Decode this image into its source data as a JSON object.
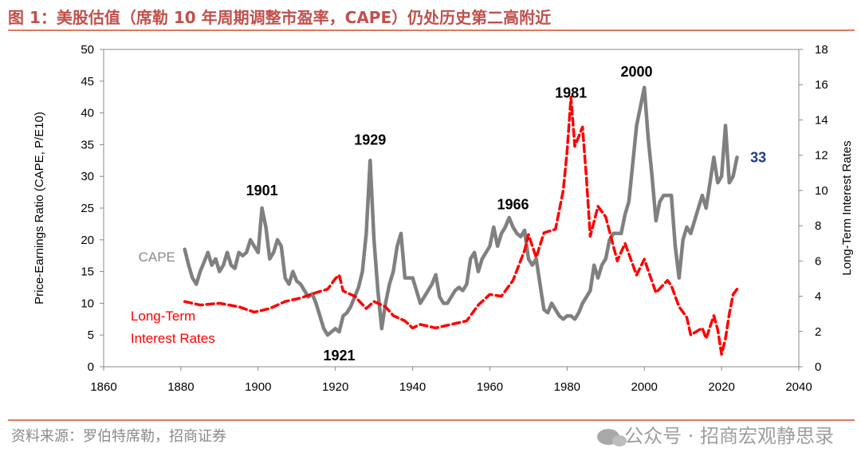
{
  "figure": {
    "title": "图 1：美股估值（席勒 10 年周期调整市盈率，CAPE）仍处历史第二高附近",
    "source": "资料来源：罗伯特席勒，招商证券",
    "watermark": "公众号 · 招商宏观静思录",
    "watermark_icon": "wechat-icon"
  },
  "chart_data": {
    "type": "line",
    "xlabel": "",
    "ylabel": "Price-Earnings Ratio (CAPE, P/E10)",
    "y2label": "Long-Term Interest Rates",
    "xlim": [
      1860,
      2040
    ],
    "ylim": [
      0,
      50
    ],
    "y2lim": [
      0,
      18
    ],
    "x_ticks": [
      1860,
      1880,
      1900,
      1920,
      1940,
      1960,
      1980,
      2000,
      2020,
      2040
    ],
    "y_ticks": [
      0,
      5,
      10,
      15,
      20,
      25,
      30,
      35,
      40,
      45,
      50
    ],
    "y2_ticks": [
      0,
      2,
      4,
      6,
      8,
      10,
      12,
      14,
      16,
      18
    ],
    "grid": false,
    "series": [
      {
        "name": "CAPE",
        "axis": "left",
        "color": "#808080",
        "style": "solid",
        "x": [
          1881,
          1882,
          1883,
          1884,
          1885,
          1886,
          1887,
          1888,
          1889,
          1890,
          1891,
          1892,
          1893,
          1894,
          1895,
          1896,
          1897,
          1898,
          1899,
          1900,
          1901,
          1902,
          1903,
          1904,
          1905,
          1906,
          1907,
          1908,
          1909,
          1910,
          1911,
          1912,
          1913,
          1914,
          1915,
          1916,
          1917,
          1918,
          1919,
          1920,
          1921,
          1922,
          1923,
          1924,
          1925,
          1926,
          1927,
          1928,
          1929,
          1930,
          1931,
          1932,
          1933,
          1934,
          1935,
          1936,
          1937,
          1938,
          1939,
          1940,
          1941,
          1942,
          1943,
          1944,
          1945,
          1946,
          1947,
          1948,
          1949,
          1950,
          1951,
          1952,
          1953,
          1954,
          1955,
          1956,
          1957,
          1958,
          1959,
          1960,
          1961,
          1962,
          1963,
          1964,
          1965,
          1966,
          1967,
          1968,
          1969,
          1970,
          1971,
          1972,
          1973,
          1974,
          1975,
          1976,
          1977,
          1978,
          1979,
          1980,
          1981,
          1982,
          1983,
          1984,
          1985,
          1986,
          1987,
          1988,
          1989,
          1990,
          1991,
          1992,
          1993,
          1994,
          1995,
          1996,
          1997,
          1998,
          1999,
          2000,
          2001,
          2002,
          2003,
          2004,
          2005,
          2006,
          2007,
          2008,
          2009,
          2010,
          2011,
          2012,
          2013,
          2014,
          2015,
          2016,
          2017,
          2018,
          2019,
          2020,
          2021,
          2022,
          2023,
          2024
        ],
        "values": [
          18.5,
          16,
          14,
          13,
          15,
          16.5,
          18,
          16,
          17,
          15,
          16,
          18,
          16,
          15.5,
          18,
          17.5,
          18,
          20,
          19,
          18,
          25,
          22,
          17,
          18,
          20,
          19,
          14,
          13,
          15,
          13.5,
          13,
          12,
          11,
          11.5,
          10,
          8,
          6,
          5,
          5.5,
          6,
          5.5,
          8,
          8.5,
          9.5,
          11,
          12.5,
          15,
          21,
          32.5,
          20,
          12,
          6,
          10,
          13,
          15,
          19,
          21,
          14,
          14,
          14,
          12,
          10,
          11,
          12,
          13,
          14.5,
          11,
          10,
          10,
          11,
          12,
          12.5,
          12,
          13,
          17,
          18,
          15,
          17,
          18,
          19,
          22,
          19,
          21,
          22,
          23.5,
          22,
          21,
          20.5,
          21.5,
          17,
          16,
          17,
          13,
          9,
          8.5,
          10,
          9,
          8,
          7.5,
          8,
          8,
          7.5,
          8.5,
          10,
          11,
          12,
          16,
          14,
          16,
          17,
          20,
          21,
          21,
          21,
          24,
          26,
          32,
          38,
          41,
          44,
          36,
          30,
          23,
          26,
          27,
          27,
          27,
          19,
          14,
          20,
          22,
          21,
          23,
          25,
          27,
          25,
          29,
          33,
          29,
          30,
          38,
          29,
          30,
          33
        ]
      },
      {
        "name": "Long-Term Interest Rates",
        "axis": "right",
        "color": "#ff0000",
        "style": "dashed",
        "x": [
          1881,
          1885,
          1890,
          1895,
          1899,
          1903,
          1907,
          1911,
          1915,
          1918,
          1920,
          1921,
          1922,
          1925,
          1928,
          1930,
          1933,
          1935,
          1938,
          1940,
          1942,
          1946,
          1950,
          1954,
          1957,
          1960,
          1963,
          1966,
          1969,
          1970,
          1972,
          1974,
          1977,
          1979,
          1980,
          1981,
          1982,
          1984,
          1985,
          1986,
          1988,
          1990,
          1993,
          1995,
          1998,
          2000,
          2003,
          2006,
          2007,
          2009,
          2011,
          2012,
          2015,
          2016,
          2018,
          2019,
          2020,
          2021,
          2022,
          2023,
          2024
        ],
        "values": [
          3.7,
          3.5,
          3.6,
          3.4,
          3.1,
          3.3,
          3.7,
          3.9,
          4.2,
          4.4,
          5.0,
          5.2,
          4.3,
          4.0,
          3.3,
          3.7,
          3.4,
          2.9,
          2.6,
          2.2,
          2.4,
          2.2,
          2.4,
          2.6,
          3.5,
          4.1,
          4.0,
          4.9,
          6.6,
          7.5,
          6.2,
          7.6,
          7.8,
          10.0,
          12.2,
          15.3,
          12.5,
          13.6,
          10.7,
          7.4,
          9.1,
          8.5,
          6.0,
          7.0,
          5.2,
          6.1,
          4.2,
          4.9,
          4.6,
          3.4,
          2.8,
          1.8,
          2.2,
          1.6,
          2.9,
          2.1,
          0.7,
          1.6,
          3.0,
          4.1,
          4.4
        ]
      }
    ],
    "annotations": [
      {
        "text": "1901",
        "x": 1901,
        "y": 27.0,
        "axis": "left",
        "color": "#000000"
      },
      {
        "text": "1921",
        "x": 1921,
        "y": 1.0,
        "axis": "left",
        "color": "#000000"
      },
      {
        "text": "1929",
        "x": 1929,
        "y": 35.0,
        "axis": "left",
        "color": "#000000"
      },
      {
        "text": "1966",
        "x": 1966,
        "y": 24.8,
        "axis": "left",
        "color": "#000000"
      },
      {
        "text": "1981",
        "x": 1981,
        "y": 42.4,
        "axis": "left",
        "color": "#000000"
      },
      {
        "text": "2000",
        "x": 1998,
        "y": 45.7,
        "axis": "left",
        "color": "#000000"
      },
      {
        "text": "33",
        "x": 2029.5,
        "y": 32.2,
        "axis": "left",
        "color": "#1f3b8c"
      }
    ],
    "series_labels": [
      {
        "lines": [
          "CAPE"
        ],
        "x": 1869,
        "y": 16.6,
        "color": "#8a8a8a"
      },
      {
        "lines": [
          "Long-Term",
          "Interest Rates"
        ],
        "x": 1867,
        "y": 7.3,
        "color": "#ff0000"
      }
    ]
  }
}
